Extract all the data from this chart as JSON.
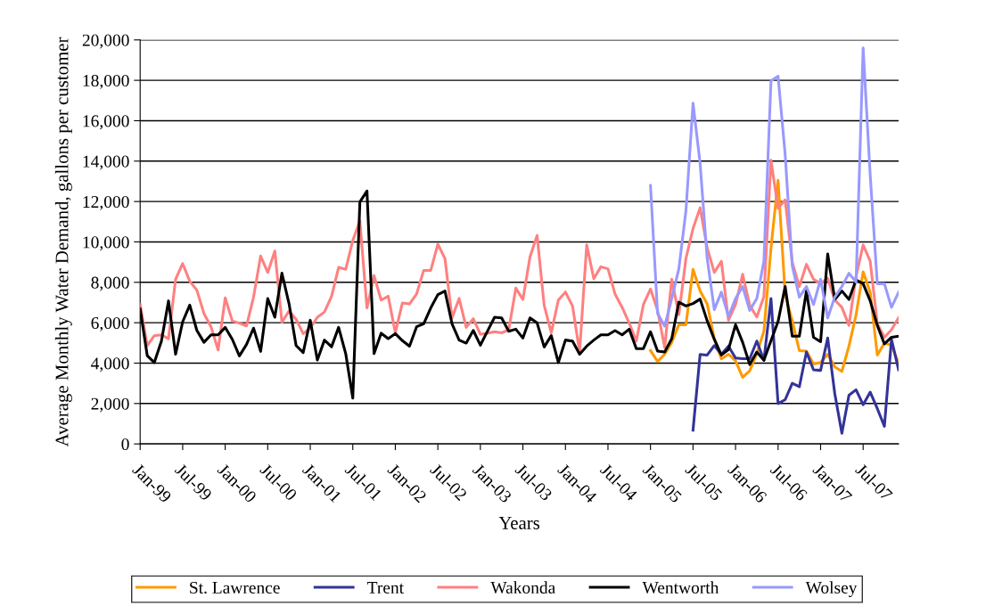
{
  "chart_data": {
    "type": "line",
    "xlabel": "Years",
    "ylabel": "Average Monthly Water Demand, gallons per customer",
    "x": [
      "1999-01",
      "1999-02",
      "1999-03",
      "1999-04",
      "1999-05",
      "1999-06",
      "1999-07",
      "1999-08",
      "1999-09",
      "1999-10",
      "1999-11",
      "1999-12",
      "2000-01",
      "2000-02",
      "2000-03",
      "2000-04",
      "2000-05",
      "2000-06",
      "2000-07",
      "2000-08",
      "2000-09",
      "2000-10",
      "2000-11",
      "2000-12",
      "2001-01",
      "2001-02",
      "2001-03",
      "2001-04",
      "2001-05",
      "2001-06",
      "2001-07",
      "2001-08",
      "2001-09",
      "2001-10",
      "2001-11",
      "2001-12",
      "2002-01",
      "2002-02",
      "2002-03",
      "2002-04",
      "2002-05",
      "2002-06",
      "2002-07",
      "2002-08",
      "2002-09",
      "2002-10",
      "2002-11",
      "2002-12",
      "2003-01",
      "2003-02",
      "2003-03",
      "2003-04",
      "2003-05",
      "2003-06",
      "2003-07",
      "2003-08",
      "2003-09",
      "2003-10",
      "2003-11",
      "2003-12",
      "2004-01",
      "2004-02",
      "2004-03",
      "2004-04",
      "2004-05",
      "2004-06",
      "2004-07",
      "2004-08",
      "2004-09",
      "2004-10",
      "2004-11",
      "2004-12",
      "2005-01",
      "2005-02",
      "2005-03",
      "2005-04",
      "2005-05",
      "2005-06",
      "2005-07",
      "2005-08",
      "2005-09",
      "2005-10",
      "2005-11",
      "2005-12",
      "2006-01",
      "2006-02",
      "2006-03",
      "2006-04",
      "2006-05",
      "2006-06",
      "2006-07",
      "2006-08",
      "2006-09",
      "2006-10",
      "2006-11",
      "2006-12",
      "2007-01",
      "2007-02",
      "2007-03",
      "2007-04",
      "2007-05",
      "2007-06",
      "2007-07",
      "2007-08",
      "2007-09",
      "2007-10",
      "2007-11",
      "2007-12"
    ],
    "xlim": [
      "1999-01",
      "2007-12"
    ],
    "xticks": [
      {
        "value": "1999-01",
        "label": "Jan-99"
      },
      {
        "value": "1999-07",
        "label": "Jul-99"
      },
      {
        "value": "2000-01",
        "label": "Jan-00"
      },
      {
        "value": "2000-07",
        "label": "Jul-00"
      },
      {
        "value": "2001-01",
        "label": "Jan-01"
      },
      {
        "value": "2001-07",
        "label": "Jul-01"
      },
      {
        "value": "2002-01",
        "label": "Jan-02"
      },
      {
        "value": "2002-07",
        "label": "Jul-02"
      },
      {
        "value": "2003-01",
        "label": "Jan-03"
      },
      {
        "value": "2003-07",
        "label": "Jul-03"
      },
      {
        "value": "2004-01",
        "label": "Jan-04"
      },
      {
        "value": "2004-07",
        "label": "Jul-04"
      },
      {
        "value": "2005-01",
        "label": "Jan-05"
      },
      {
        "value": "2005-07",
        "label": "Jul-05"
      },
      {
        "value": "2006-01",
        "label": "Jan-06"
      },
      {
        "value": "2006-07",
        "label": "Jul-06"
      },
      {
        "value": "2007-01",
        "label": "Jan-07"
      },
      {
        "value": "2007-07",
        "label": "Jul-07"
      }
    ],
    "ylim": [
      0,
      20000
    ],
    "yticks": [
      0,
      {
        "value": 2000,
        "label": "2,000"
      },
      {
        "value": 4000,
        "label": "4,000"
      },
      {
        "value": 6000,
        "label": "6,000"
      },
      {
        "value": 8000,
        "label": "8,000"
      },
      {
        "value": 10000,
        "label": "10,000"
      },
      {
        "value": 12000,
        "label": "12,000"
      },
      {
        "value": 14000,
        "label": "14,000"
      },
      {
        "value": 16000,
        "label": "16,000"
      },
      {
        "value": 18000,
        "label": "18,000"
      },
      {
        "value": 20000,
        "label": "20,000"
      }
    ],
    "grid": "y",
    "legend": "bottom",
    "marker": "none",
    "line_style": "solid",
    "series": [
      {
        "name": "St. Lawrence",
        "color": "#ff9900",
        "values": [
          null,
          null,
          null,
          null,
          null,
          null,
          null,
          null,
          null,
          null,
          null,
          null,
          null,
          null,
          null,
          null,
          null,
          null,
          null,
          null,
          null,
          null,
          null,
          null,
          null,
          null,
          null,
          null,
          null,
          null,
          null,
          null,
          null,
          null,
          null,
          null,
          null,
          null,
          null,
          null,
          null,
          null,
          null,
          null,
          null,
          null,
          null,
          null,
          null,
          null,
          null,
          null,
          null,
          null,
          null,
          null,
          null,
          null,
          null,
          null,
          null,
          null,
          null,
          null,
          null,
          null,
          null,
          null,
          null,
          null,
          null,
          null,
          4620,
          4080,
          4440,
          5030,
          5900,
          5900,
          8640,
          7570,
          6930,
          5210,
          4210,
          4440,
          4110,
          3300,
          3620,
          4470,
          5580,
          9700,
          13050,
          7400,
          6090,
          4620,
          4590,
          3960,
          4030,
          4440,
          3810,
          3590,
          4840,
          6390,
          8520,
          7490,
          4400,
          4990,
          4890,
          3990
        ]
      },
      {
        "name": "Trent",
        "color": "#333399",
        "values": [
          null,
          null,
          null,
          null,
          null,
          null,
          null,
          null,
          null,
          null,
          null,
          null,
          null,
          null,
          null,
          null,
          null,
          null,
          null,
          null,
          null,
          null,
          null,
          null,
          null,
          null,
          null,
          null,
          null,
          null,
          null,
          null,
          null,
          null,
          null,
          null,
          null,
          null,
          null,
          null,
          null,
          null,
          null,
          null,
          null,
          null,
          null,
          null,
          null,
          null,
          null,
          null,
          null,
          null,
          null,
          null,
          null,
          null,
          null,
          null,
          null,
          null,
          null,
          null,
          null,
          null,
          null,
          null,
          null,
          null,
          null,
          null,
          null,
          null,
          null,
          null,
          null,
          null,
          680,
          4430,
          4400,
          4870,
          4440,
          4840,
          4250,
          4220,
          4220,
          5090,
          4140,
          7200,
          2000,
          2190,
          3000,
          2830,
          4550,
          3670,
          3640,
          5240,
          2490,
          530,
          2410,
          2680,
          1940,
          2560,
          1750,
          870,
          5180,
          3670
        ]
      },
      {
        "name": "Wakonda",
        "color": "#ff8080",
        "values": [
          6900,
          4870,
          5360,
          5400,
          5210,
          8150,
          8930,
          8050,
          7610,
          6460,
          5800,
          4650,
          7230,
          6090,
          5980,
          5840,
          7270,
          9300,
          8490,
          9550,
          6020,
          6580,
          6170,
          5460,
          5730,
          6270,
          6530,
          7300,
          8740,
          8640,
          10070,
          11050,
          6730,
          8330,
          7120,
          7310,
          5500,
          6980,
          6930,
          7420,
          8590,
          8590,
          9890,
          9180,
          6240,
          7200,
          5770,
          6200,
          5430,
          5480,
          5550,
          5500,
          5650,
          7710,
          7150,
          9260,
          10320,
          6860,
          5500,
          7120,
          7520,
          6830,
          4550,
          9850,
          8180,
          8770,
          8670,
          7420,
          6760,
          5980,
          5090,
          6900,
          7670,
          6610,
          4770,
          8150,
          6390,
          9180,
          10660,
          11690,
          9700,
          8490,
          9040,
          6120,
          6900,
          8400,
          6860,
          6280,
          7300,
          14040,
          11660,
          12080,
          9000,
          7790,
          8890,
          8150,
          7930,
          8200,
          7120,
          6760,
          5870,
          8300,
          9850,
          9040,
          5950,
          5280,
          5650,
          6240
        ]
      },
      {
        "name": "Wentworth",
        "color": "#000000",
        "values": [
          6680,
          4370,
          4030,
          5090,
          7080,
          4440,
          6050,
          6870,
          5620,
          5030,
          5400,
          5400,
          5770,
          5180,
          4360,
          4920,
          5730,
          4580,
          7200,
          6270,
          8450,
          6950,
          4870,
          4520,
          6120,
          4150,
          5140,
          4810,
          5770,
          4470,
          2270,
          11980,
          12520,
          4470,
          5480,
          5210,
          5460,
          5110,
          4840,
          5800,
          5950,
          6730,
          7390,
          7570,
          5950,
          5140,
          4990,
          5620,
          4890,
          5580,
          6270,
          6240,
          5580,
          5680,
          5240,
          6240,
          5990,
          4800,
          5360,
          4030,
          5140,
          5090,
          4440,
          4840,
          5140,
          5400,
          5400,
          5610,
          5400,
          5680,
          4720,
          4720,
          5550,
          4590,
          4550,
          5210,
          7020,
          6830,
          6950,
          7170,
          6090,
          5180,
          4400,
          4670,
          5900,
          5030,
          3930,
          4550,
          4140,
          5110,
          6060,
          7790,
          5330,
          5330,
          7570,
          5280,
          5060,
          9400,
          7150,
          7570,
          7150,
          8120,
          7930,
          7080,
          5870,
          4950,
          5280,
          5330
        ]
      },
      {
        "name": "Wolsey",
        "color": "#9999ff",
        "values": [
          null,
          null,
          null,
          null,
          null,
          null,
          null,
          null,
          null,
          null,
          null,
          null,
          null,
          null,
          null,
          null,
          null,
          null,
          null,
          null,
          null,
          null,
          null,
          null,
          null,
          null,
          null,
          null,
          null,
          null,
          null,
          null,
          null,
          null,
          null,
          null,
          null,
          null,
          null,
          null,
          null,
          null,
          null,
          null,
          null,
          null,
          null,
          null,
          null,
          null,
          null,
          null,
          null,
          null,
          null,
          null,
          null,
          null,
          null,
          null,
          null,
          null,
          null,
          null,
          null,
          null,
          null,
          null,
          null,
          null,
          null,
          null,
          12790,
          6460,
          5830,
          7200,
          8670,
          11540,
          16870,
          13890,
          9180,
          6650,
          7510,
          6310,
          7200,
          7790,
          6610,
          7200,
          9040,
          17970,
          18200,
          14330,
          8820,
          7270,
          7790,
          6900,
          8150,
          6240,
          7270,
          7790,
          8450,
          8010,
          19600,
          13300,
          7930,
          7930,
          6760,
          7510
        ]
      }
    ]
  }
}
